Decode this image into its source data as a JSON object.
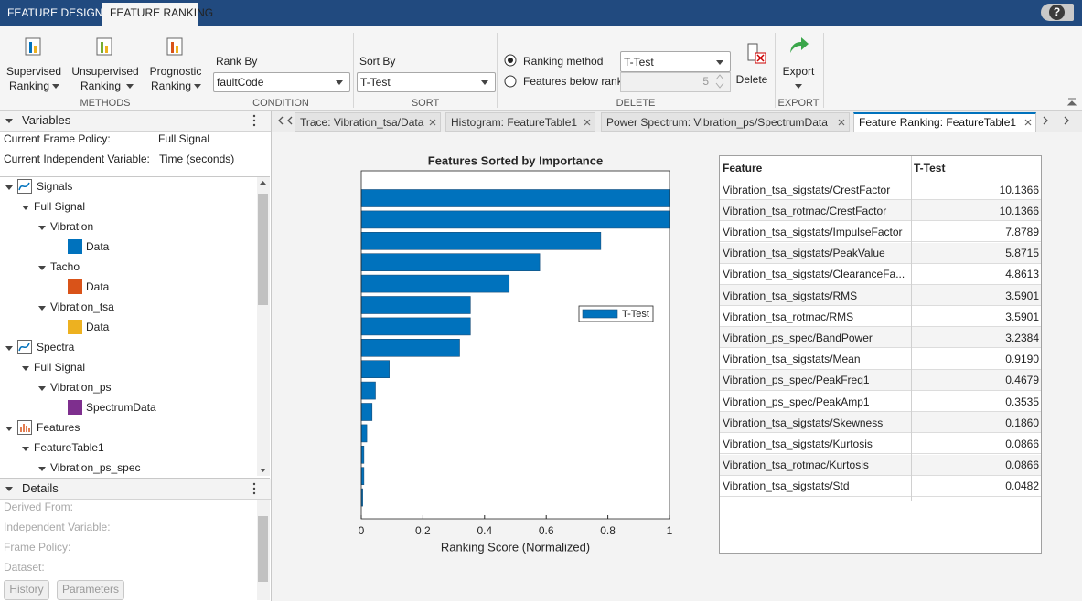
{
  "toolstrip": {
    "tabs": [
      "FEATURE DESIGNER",
      "FEATURE RANKING"
    ],
    "help": "?",
    "methods": {
      "buttons": [
        [
          "Supervised",
          "Ranking"
        ],
        [
          "Unsupervised",
          "Ranking"
        ],
        [
          "Prognostic",
          "Ranking"
        ]
      ],
      "label": "METHODS"
    },
    "condition": {
      "rank_by": "Rank By",
      "value": "faultCode",
      "label": "CONDITION"
    },
    "sort": {
      "sort_by": "Sort By",
      "value": "T-Test",
      "label": "SORT"
    },
    "delete": {
      "ranking_method": "Ranking method",
      "method_value": "T-Test",
      "features_below_rank": "Features below rank",
      "rank_value": "5",
      "button": "Delete",
      "label": "DELETE"
    },
    "export": {
      "button": "Export",
      "label": "EXPORT"
    }
  },
  "variables": {
    "title": "Variables",
    "frame_policy_label": "Current Frame Policy:",
    "frame_policy": "Full Signal",
    "independent_variable_label": "Current Independent Variable:",
    "independent_variable": "Time (seconds)",
    "tree": [
      {
        "label": "Signals"
      },
      {
        "label": "Full Signal"
      },
      {
        "label": "Vibration"
      },
      {
        "label": "Data",
        "color": "#0072BD"
      },
      {
        "label": "Tacho"
      },
      {
        "label": "Data",
        "color": "#D95319"
      },
      {
        "label": "Vibration_tsa"
      },
      {
        "label": "Data",
        "color": "#EDB120"
      },
      {
        "label": "Spectra"
      },
      {
        "label": "Full Signal"
      },
      {
        "label": "Vibration_ps"
      },
      {
        "label": "SpectrumData",
        "color": "#7E2F8E"
      },
      {
        "label": "Features"
      },
      {
        "label": "FeatureTable1"
      },
      {
        "label": "Vibration_ps_spec"
      }
    ]
  },
  "details": {
    "title": "Details",
    "fields": [
      "Derived From:",
      "Independent Variable:",
      "Frame Policy:",
      "Dataset:"
    ],
    "buttons": [
      "History",
      "Parameters"
    ]
  },
  "tabs": [
    "Trace: Vibration_tsa/Data",
    "Histogram: FeatureTable1",
    "Power Spectrum: Vibration_ps/SpectrumData",
    "Feature Ranking: FeatureTable1"
  ],
  "chart_data": {
    "type": "bar",
    "orientation": "horizontal",
    "title": "Features Sorted by Importance",
    "xlabel": "Ranking Score (Normalized)",
    "xlim": [
      0,
      1
    ],
    "xticks": [
      0,
      0.2,
      0.4,
      0.6,
      0.8,
      1
    ],
    "legend": "right",
    "series": [
      {
        "name": "T-Test",
        "color": "#0072BD",
        "values": [
          1,
          1,
          0.777,
          0.579,
          0.48,
          0.354,
          0.354,
          0.319,
          0.091,
          0.046,
          0.035,
          0.018,
          0.0085,
          0.0085,
          0.0048
        ]
      }
    ]
  },
  "table": {
    "header": [
      "Feature",
      "T-Test"
    ],
    "rows": [
      [
        "Vibration_tsa_sigstats/CrestFactor",
        "10.1366"
      ],
      [
        "Vibration_tsa_rotmac/CrestFactor",
        "10.1366"
      ],
      [
        "Vibration_tsa_sigstats/ImpulseFactor",
        "7.8789"
      ],
      [
        "Vibration_tsa_sigstats/PeakValue",
        "5.8715"
      ],
      [
        "Vibration_tsa_sigstats/ClearanceFa...",
        "4.8613"
      ],
      [
        "Vibration_tsa_sigstats/RMS",
        "3.5901"
      ],
      [
        "Vibration_tsa_rotmac/RMS",
        "3.5901"
      ],
      [
        "Vibration_ps_spec/BandPower",
        "3.2384"
      ],
      [
        "Vibration_tsa_sigstats/Mean",
        "0.9190"
      ],
      [
        "Vibration_ps_spec/PeakFreq1",
        "0.4679"
      ],
      [
        "Vibration_ps_spec/PeakAmp1",
        "0.3535"
      ],
      [
        "Vibration_tsa_sigstats/Skewness",
        "0.1860"
      ],
      [
        "Vibration_tsa_sigstats/Kurtosis",
        "0.0866"
      ],
      [
        "Vibration_tsa_rotmac/Kurtosis",
        "0.0866"
      ],
      [
        "Vibration_tsa_sigstats/Std",
        "0.0482"
      ]
    ]
  }
}
